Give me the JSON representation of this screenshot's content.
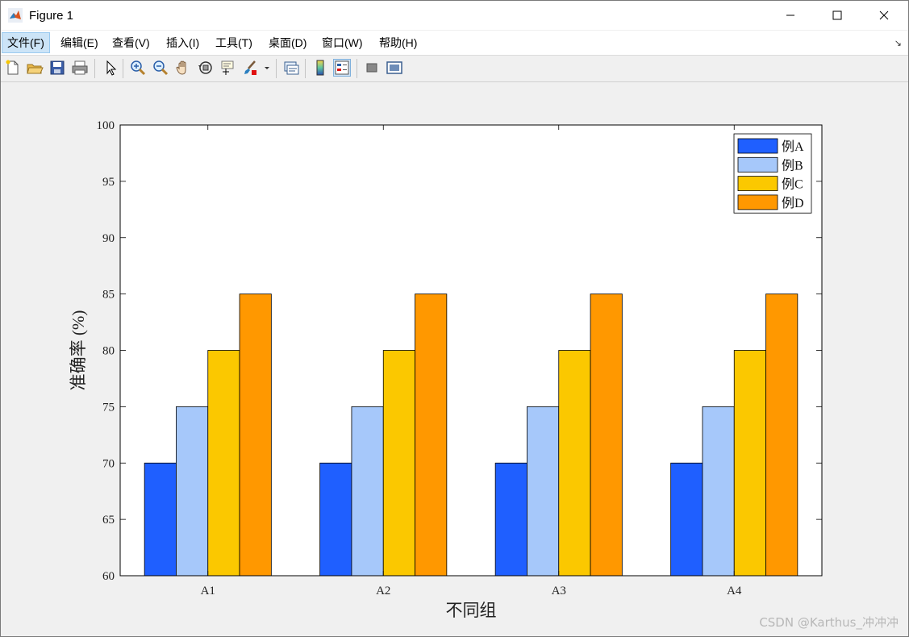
{
  "window": {
    "title": "Figure 1"
  },
  "menu": {
    "items": [
      {
        "label": "文件(F)"
      },
      {
        "label": "编辑(E)"
      },
      {
        "label": "查看(V)"
      },
      {
        "label": "插入(I)"
      },
      {
        "label": "工具(T)"
      },
      {
        "label": "桌面(D)"
      },
      {
        "label": "窗口(W)"
      },
      {
        "label": "帮助(H)"
      }
    ],
    "corner_glyph": "↘"
  },
  "toolbar": {
    "icons": [
      "new-figure-icon",
      "open-file-icon",
      "save-icon",
      "print-icon",
      "edit-plot-pointer-icon",
      "zoom-in-icon",
      "zoom-out-icon",
      "pan-hand-icon",
      "rotate-3d-icon",
      "data-cursor-icon",
      "brush-icon",
      "link-plot-icon",
      "colorbar-icon",
      "legend-icon",
      "hide-plot-tools-icon",
      "show-plot-tools-icon"
    ]
  },
  "colors": {
    "seriesA": "#1f5fff",
    "seriesB": "#a6c8fa",
    "seriesC": "#fbc800",
    "seriesD": "#ff9800"
  },
  "chart_data": {
    "type": "bar",
    "categories": [
      "A1",
      "A2",
      "A3",
      "A4"
    ],
    "series": [
      {
        "name": "例A",
        "values": [
          70,
          70,
          70,
          70
        ],
        "color": "#1f5fff"
      },
      {
        "name": "例B",
        "values": [
          75,
          75,
          75,
          75
        ],
        "color": "#a6c8fa"
      },
      {
        "name": "例C",
        "values": [
          80,
          80,
          80,
          80
        ],
        "color": "#fbc800"
      },
      {
        "name": "例D",
        "values": [
          85,
          85,
          85,
          85
        ],
        "color": "#ff9800"
      }
    ],
    "xlabel": "不同组",
    "ylabel": "准确率 (%)",
    "ylim": [
      60,
      100
    ],
    "yticks": [
      60,
      65,
      70,
      75,
      80,
      85,
      90,
      95,
      100
    ],
    "grid": false,
    "legend": "top-right"
  },
  "watermark": "CSDN @Karthus_冲冲冲"
}
